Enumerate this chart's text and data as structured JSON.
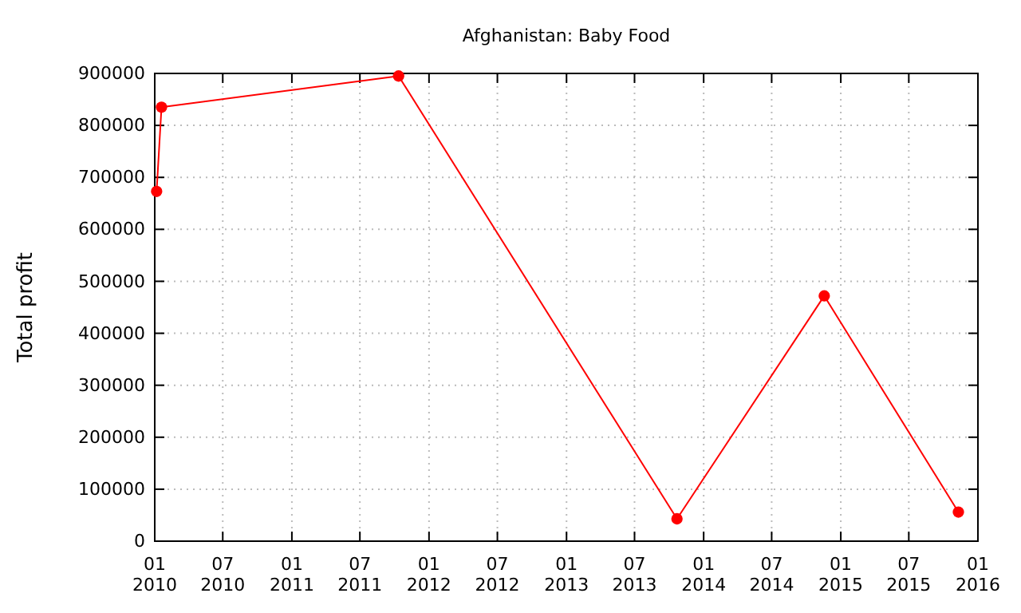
{
  "chart_data": {
    "type": "line",
    "title": "Afghanistan: Baby Food",
    "ylabel": "Total profit",
    "x": [
      "2010-01-06",
      "2010-01-19",
      "2011-10-12",
      "2013-10-22",
      "2014-11-18",
      "2015-11-10"
    ],
    "series": [
      {
        "color": "#ff0000",
        "values": [
          673000,
          835000,
          895000,
          43000,
          472000,
          56000
        ]
      }
    ],
    "xlim": [
      "2010-01-01",
      "2016-01-01"
    ],
    "xticks": [
      {
        "value": "2010-01-01",
        "label": "01 2010"
      },
      {
        "value": "2010-07-01",
        "label": "07 2010"
      },
      {
        "value": "2011-01-01",
        "label": "01 2011"
      },
      {
        "value": "2011-07-01",
        "label": "07 2011"
      },
      {
        "value": "2012-01-01",
        "label": "01 2012"
      },
      {
        "value": "2012-07-01",
        "label": "07 2012"
      },
      {
        "value": "2013-01-01",
        "label": "01 2013"
      },
      {
        "value": "2013-07-01",
        "label": "07 2013"
      },
      {
        "value": "2014-01-01",
        "label": "01 2014"
      },
      {
        "value": "2014-07-01",
        "label": "07 2014"
      },
      {
        "value": "2015-01-01",
        "label": "01 2015"
      },
      {
        "value": "2015-07-01",
        "label": "07 2015"
      },
      {
        "value": "2016-01-01",
        "label": "01 2016"
      }
    ],
    "ylim": [
      0,
      900000
    ],
    "yticks": [
      0,
      100000,
      200000,
      300000,
      400000,
      500000,
      600000,
      700000,
      800000,
      900000
    ],
    "grid": true,
    "marker": "circle",
    "line_style": "solid"
  }
}
